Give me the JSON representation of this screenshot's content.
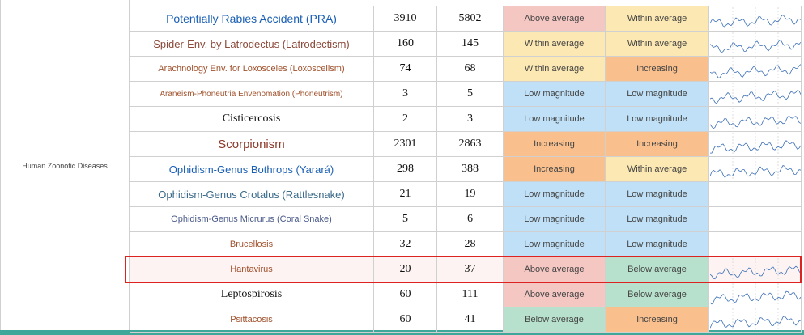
{
  "table": {
    "group_label": "Human Zoonotic Diseases",
    "status_colors": {
      "Above average": "#f4c7c3",
      "Within average": "#fce8b2",
      "Increasing": "#f9c08e",
      "Low magnitude": "#bfe0f6",
      "Below average": "#b7e1cd"
    },
    "rows": [
      [
        "Potentially Rabies Accident (PRA)",
        "3910",
        "5802",
        "Above average",
        "Within average"
      ],
      [
        "Spider-Env. by Latrodectus (Latrodectism)",
        "160",
        "145",
        "Within average",
        "Within average"
      ],
      [
        "Arachnology Env. for Loxosceles (Loxoscelism)",
        "74",
        "68",
        "Within average",
        "Increasing"
      ],
      [
        "Araneism-Phoneutria Envenomation (Phoneutrism)",
        "3",
        "5",
        "Low magnitude",
        "Low magnitude"
      ],
      [
        "Cisticercosis",
        "2",
        "3",
        "Low magnitude",
        "Low magnitude"
      ],
      [
        "Scorpionism",
        "2301",
        "2863",
        "Increasing",
        "Increasing"
      ],
      [
        "Ophidism-Genus Bothrops (Yarará)",
        "298",
        "388",
        "Increasing",
        "Within average"
      ],
      [
        "Ophidism-Genus Crotalus (Rattlesnake)",
        "21",
        "19",
        "Low magnitude",
        "Low magnitude"
      ],
      [
        "Ophidism-Genus Micrurus (Coral Snake)",
        "5",
        "6",
        "Low magnitude",
        "Low magnitude"
      ],
      [
        "Brucellosis",
        "32",
        "28",
        "Low magnitude",
        "Low magnitude"
      ],
      [
        "Hantavirus",
        "20",
        "37",
        "Above average",
        "Below average"
      ],
      [
        "Leptospirosis",
        "60",
        "111",
        "Above average",
        "Below average"
      ],
      [
        "Psittacosis",
        "60",
        "41",
        "Below average",
        "Increasing"
      ]
    ]
  }
}
